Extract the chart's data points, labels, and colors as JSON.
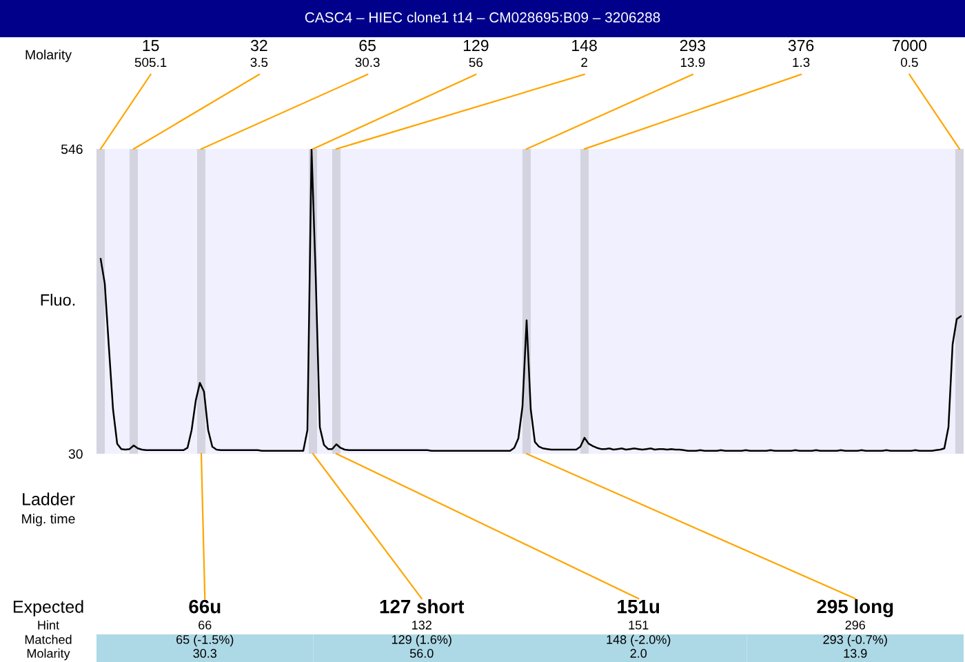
{
  "chart_data": {
    "type": "line",
    "title": "CASC4 – HIEC clone1 t14 – CM028695:B09 – 3206288",
    "ylabel": "Fluo.",
    "categories": [
      null,
      null,
      null,
      null,
      null,
      null,
      null,
      null,
      null,
      null,
      null,
      null,
      null,
      null,
      null,
      null,
      null,
      null,
      null,
      null,
      null,
      null,
      null,
      null,
      null,
      null,
      null,
      null,
      null,
      null,
      null,
      null,
      null,
      null,
      null,
      null,
      null,
      null,
      null,
      null,
      null,
      null,
      null,
      null,
      null,
      null,
      null,
      null,
      null,
      null,
      null,
      null,
      null,
      null,
      null,
      null,
      null,
      null,
      null,
      null,
      null,
      null,
      null,
      null,
      null,
      null,
      null,
      null,
      null,
      null,
      null,
      null,
      null,
      null,
      null,
      null,
      null,
      null,
      null,
      null,
      null,
      null,
      null,
      null,
      null,
      null,
      null,
      null,
      null,
      null,
      null,
      null,
      null,
      null,
      null,
      null,
      null,
      null,
      null,
      null,
      null,
      null,
      null,
      null,
      null,
      null,
      null,
      null,
      null,
      null,
      null,
      null,
      null,
      null,
      null,
      null,
      null,
      null,
      null,
      null,
      null,
      null,
      null,
      null,
      null,
      null,
      null,
      null,
      null,
      null,
      null,
      null,
      null,
      null,
      null,
      null,
      null,
      null,
      null,
      null,
      null,
      null,
      null,
      null,
      null,
      null,
      null,
      null,
      null,
      null,
      null,
      null,
      null,
      null,
      null,
      null,
      null,
      null,
      null,
      null,
      null,
      null,
      null,
      null,
      null,
      null,
      null,
      null,
      null,
      null,
      null,
      null,
      null,
      null,
      null,
      null,
      null,
      null,
      null,
      null,
      null,
      null,
      null,
      null,
      null,
      null,
      null,
      null,
      null,
      null,
      null,
      null,
      null,
      null,
      null,
      null,
      null,
      null,
      null,
      null,
      null,
      null,
      null,
      null,
      null,
      null,
      null,
      null,
      null
    ],
    "values": [
      360,
      318,
      210,
      105,
      47,
      38,
      37,
      38,
      44,
      39,
      37,
      36,
      36,
      36,
      36,
      36,
      36,
      36,
      36,
      36,
      36,
      40,
      70,
      120,
      150,
      135,
      70,
      42,
      37,
      36,
      36,
      36,
      36,
      36,
      36,
      36,
      36,
      36,
      36,
      35,
      35,
      35,
      35,
      35,
      35,
      35,
      35,
      35,
      35,
      35,
      70,
      546,
      331,
      75,
      45,
      38,
      38,
      46,
      40,
      37,
      36,
      36,
      36,
      36,
      36,
      36,
      36,
      36,
      36,
      36,
      36,
      36,
      36,
      36,
      36,
      36,
      36,
      36,
      36,
      36,
      35,
      35,
      35,
      35,
      35,
      35,
      35,
      35,
      35,
      35,
      35,
      35,
      35,
      35,
      35,
      35,
      35,
      35,
      35,
      35,
      40,
      56,
      110,
      256,
      105,
      50,
      42,
      39,
      38,
      37,
      37,
      37,
      37,
      37,
      37,
      37,
      42,
      57,
      47,
      43,
      40,
      38,
      38,
      39,
      37,
      38,
      39,
      37,
      38,
      39,
      38,
      37,
      38,
      39,
      37,
      38,
      38,
      37,
      38,
      37,
      37,
      36,
      35,
      35,
      35,
      36,
      35,
      35,
      35,
      35,
      36,
      35,
      35,
      35,
      35,
      35,
      36,
      35,
      35,
      35,
      35,
      35,
      36,
      35,
      35,
      35,
      35,
      35,
      36,
      35,
      35,
      35,
      35,
      36,
      35,
      35,
      35,
      35,
      35,
      36,
      35,
      35,
      35,
      35,
      36,
      35,
      35,
      35,
      35,
      35,
      36,
      35,
      35,
      35,
      35,
      35,
      35,
      36,
      35,
      35,
      35,
      35,
      36,
      37,
      39,
      75,
      215,
      258,
      263
    ],
    "color": "#000000",
    "ylim": [
      30,
      546
    ],
    "yticks": [
      30,
      546
    ],
    "tick_labels": "y",
    "annotations": [
      "Molarity",
      "Ladder",
      "Mig. time",
      "Expected",
      "Hint",
      "Matched",
      "Molarity",
      "15",
      "505.1",
      "32",
      "3.5",
      "65",
      "30.3",
      "129",
      "56",
      "148",
      "2",
      "293",
      "13.9",
      "376",
      "1.3",
      "7000",
      "0.5",
      "66u",
      "66",
      "65 (-1.5%)",
      "30.3",
      "127 short",
      "132",
      "129 (1.6%)",
      "56.0",
      "151u",
      "151",
      "148 (-2.0%)",
      "2.0",
      "295 long",
      "296",
      "293 (-0.7%)",
      "13.9"
    ]
  }
}
